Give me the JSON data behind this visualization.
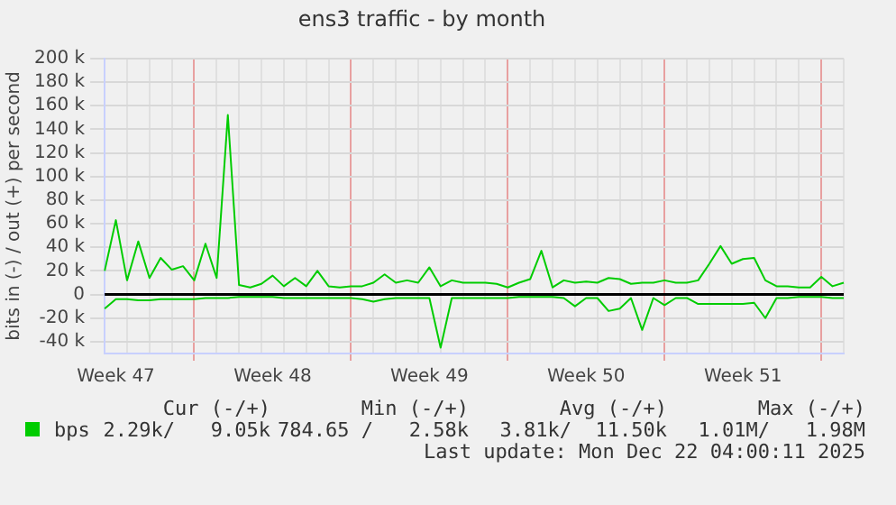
{
  "chart_data": {
    "type": "line",
    "title": "ens3 traffic - by month",
    "ylabel": "bits in (-) / out (+) per second",
    "categories": [
      null,
      "Week 47",
      null,
      null,
      null,
      null,
      null,
      null,
      null,
      null,
      null,
      null,
      null,
      null,
      null,
      "Week 48",
      null,
      null,
      null,
      null,
      null,
      null,
      null,
      null,
      null,
      null,
      null,
      null,
      null,
      "Week 49",
      null,
      null,
      null,
      null,
      null,
      null,
      null,
      null,
      null,
      null,
      null,
      null,
      null,
      "Week 50",
      null,
      null,
      null,
      null,
      null,
      null,
      null,
      null,
      null,
      null,
      null,
      null,
      null,
      "Week 51",
      null,
      null,
      null,
      null,
      null,
      null,
      null,
      null,
      null
    ],
    "ylim": [
      -50000,
      200000
    ],
    "yticks": [
      {
        "value": -40000,
        "label": "-40 k"
      },
      {
        "value": -20000,
        "label": "-20 k"
      },
      {
        "value": 0,
        "label": "0"
      },
      {
        "value": 20000,
        "label": "20 k"
      },
      {
        "value": 40000,
        "label": "40 k"
      },
      {
        "value": 60000,
        "label": "60 k"
      },
      {
        "value": 80000,
        "label": "80 k"
      },
      {
        "value": 100000,
        "label": "100 k"
      },
      {
        "value": 120000,
        "label": "120 k"
      },
      {
        "value": 140000,
        "label": "140 k"
      },
      {
        "value": 160000,
        "label": "160 k"
      },
      {
        "value": 180000,
        "label": "180 k"
      },
      {
        "value": 200000,
        "label": "200 k"
      }
    ],
    "grid": true,
    "legend": "bottom left",
    "marker": "none",
    "line_style": "solid",
    "ref_lines": [
      {
        "axis": "y",
        "value": 0,
        "color": "#000000"
      }
    ],
    "series": [
      {
        "name": "bps",
        "color": "#00cc00",
        "values": [
          20000,
          63000,
          12000,
          45000,
          14000,
          31000,
          21000,
          24000,
          12000,
          43000,
          14000,
          152000,
          8000,
          6000,
          9000,
          16000,
          7000,
          14000,
          7000,
          20000,
          7000,
          6000,
          7000,
          7000,
          10000,
          17000,
          10000,
          12000,
          10000,
          23000,
          7000,
          12000,
          10000,
          10000,
          10000,
          9000,
          6000,
          10000,
          13000,
          37000,
          6000,
          12000,
          10000,
          11000,
          10000,
          14000,
          13000,
          9000,
          10000,
          10000,
          12000,
          10000,
          10000,
          12000,
          26000,
          41000,
          26000,
          30000,
          31000,
          12000,
          7000,
          7000,
          6000,
          6000,
          15000,
          7000,
          10000
        ]
      },
      {
        "color": "#00cc00",
        "values": [
          -12000,
          -4000,
          -4000,
          -5000,
          -5000,
          -4000,
          -4000,
          -4000,
          -4000,
          -3000,
          -3000,
          -3000,
          -2000,
          -2000,
          -2000,
          -2000,
          -3000,
          -3000,
          -3000,
          -3000,
          -3000,
          -3000,
          -3000,
          -4000,
          -6000,
          -4000,
          -3000,
          -3000,
          -3000,
          -3000,
          -45000,
          -3000,
          -3000,
          -3000,
          -3000,
          -3000,
          -3000,
          -2000,
          -2000,
          -2000,
          -2000,
          -3000,
          -10000,
          -3000,
          -3000,
          -14000,
          -12000,
          -3000,
          -30000,
          -3000,
          -9000,
          -3000,
          -3000,
          -8000,
          -8000,
          -8000,
          -8000,
          -8000,
          -7000,
          -20000,
          -3000,
          -3000,
          -2000,
          -2000,
          -2000,
          -3000,
          -3000
        ]
      }
    ],
    "annotations": [
      "Cur (-/+)",
      "Min (-/+)",
      "Avg (-/+)",
      "Max (-/+)",
      "2.29k/   9.05k",
      "784.65 /   2.58k",
      "3.81k/  11.50k",
      "1.01M/   1.98M",
      "Last update: Mon Dec 22 04:00:11 2025"
    ]
  }
}
